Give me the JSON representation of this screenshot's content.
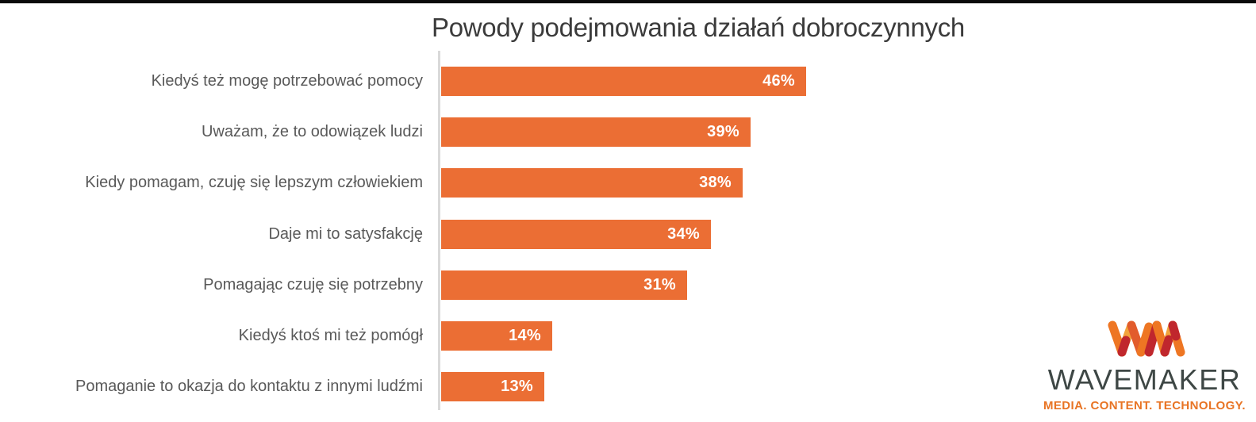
{
  "page": {
    "title": "Powody podejmowania działań dobroczynnych"
  },
  "chart_data": {
    "type": "bar",
    "orientation": "horizontal",
    "title": "Powody podejmowania działań dobroczynnych",
    "categories": [
      "Kiedyś też mogę potrzebować pomocy",
      "Uważam, że to odowiązek ludzi",
      "Kiedy pomagam, czuję się lepszym człowiekiem",
      "Daje mi to satysfakcję",
      "Pomagając czuję się potrzebny",
      "Kiedyś ktoś mi też pomógł",
      "Pomaganie to okazja do kontaktu z innymi ludźmi"
    ],
    "values": [
      46,
      39,
      38,
      34,
      31,
      14,
      13
    ],
    "value_suffix": "%",
    "value_labels": [
      "46%",
      "39%",
      "38%",
      "34%",
      "31%",
      "14%",
      "13%"
    ],
    "xlim": [
      0,
      100
    ],
    "x_axis_visible": false,
    "grid": false,
    "legend": null,
    "bar_color": "#eb6e34",
    "value_label_color": "#ffffff",
    "category_label_color": "#595959",
    "axis_line_color": "#d9d9d9",
    "title_color": "#3b3b3b"
  },
  "logo": {
    "name": "WAVEMAKER",
    "tagline": "MEDIA. CONTENT. TECHNOLOGY.",
    "mark_icon": "wm-monogram-icon",
    "colors": {
      "orange": "#ee7623",
      "red_orange": "#e25c2c",
      "dark_red": "#c0272d",
      "yellow": "#f2a33c",
      "name_text": "#3e4745",
      "tagline_text": "#e87424"
    }
  }
}
